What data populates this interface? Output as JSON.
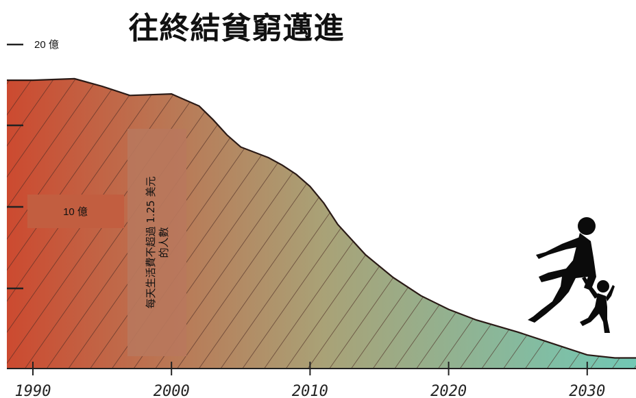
{
  "chart_data": {
    "type": "area",
    "title": "往終結貧窮邁進",
    "annotation": "每天生活費不超過 1.25 美元的人數",
    "annotation_lines": [
      "每天生活費不超過 1.25 美元",
      "的人數"
    ],
    "y_ticks": [
      {
        "value": 2000000000,
        "label": "20 億"
      },
      {
        "value": 1000000000,
        "label": "10 億"
      }
    ],
    "ylim": [
      0,
      2000000000
    ],
    "x_ticks": [
      1990,
      2000,
      2010,
      2020,
      2030
    ],
    "xlim": [
      1990,
      2034
    ],
    "x": [
      1990,
      1993,
      1995,
      1997,
      2000,
      2002,
      2003,
      2004,
      2005,
      2007,
      2008,
      2009,
      2010,
      2011,
      2012,
      2014,
      2016,
      2018,
      2020,
      2022,
      2025,
      2028,
      2030,
      2032,
      2034
    ],
    "values": [
      1900000000,
      1910000000,
      1860000000,
      1800000000,
      1810000000,
      1730000000,
      1640000000,
      1540000000,
      1460000000,
      1390000000,
      1340000000,
      1280000000,
      1200000000,
      1090000000,
      950000000,
      750000000,
      600000000,
      480000000,
      390000000,
      320000000,
      240000000,
      150000000,
      90000000,
      70000000,
      70000000
    ],
    "grid": false,
    "legend": "none",
    "colors": {
      "start": "#cc4a30",
      "mid": "#a9a277",
      "end": "#70c9b6",
      "hatch": "#4a2a22",
      "label_box": "#c25e40",
      "annotation_box": "#b9775c"
    }
  }
}
